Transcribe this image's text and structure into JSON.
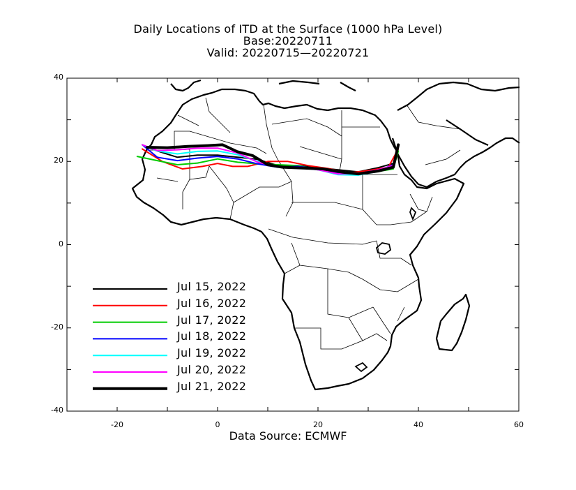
{
  "header": {
    "title": "Daily Locations of ITD at the Surface (1000 hPa Level)",
    "base": "Base:20220711",
    "valid": "Valid: 20220715—20220721"
  },
  "axes": {
    "x_ticks": [
      -20,
      0,
      20,
      40,
      60
    ],
    "y_ticks": [
      40,
      20,
      0,
      -20,
      -40
    ],
    "xlim": [
      -30,
      60
    ],
    "ylim": [
      -40,
      40
    ]
  },
  "legend": [
    {
      "label": "Jul 15, 2022",
      "color": "#000000",
      "width": 2
    },
    {
      "label": "Jul 16, 2022",
      "color": "#ff0000",
      "width": 2
    },
    {
      "label": "Jul 17, 2022",
      "color": "#00cc00",
      "width": 2
    },
    {
      "label": "Jul 18, 2022",
      "color": "#0000ff",
      "width": 2
    },
    {
      "label": "Jul 19, 2022",
      "color": "#00ffff",
      "width": 2
    },
    {
      "label": "Jul 20, 2022",
      "color": "#ff00ff",
      "width": 2
    },
    {
      "label": "Jul 21, 2022",
      "color": "#000000",
      "width": 4
    }
  ],
  "chart_data": {
    "type": "line",
    "xlabel": "",
    "ylabel": "",
    "series": [
      {
        "name": "Jul 15, 2022",
        "color": "#000000",
        "points": [
          [
            -15,
            24
          ],
          [
            -12,
            22.5
          ],
          [
            -8,
            21
          ],
          [
            -4,
            21.5
          ],
          [
            0,
            21.5
          ],
          [
            4,
            21
          ],
          [
            8,
            20.5
          ],
          [
            12,
            19
          ],
          [
            16,
            19
          ],
          [
            20,
            18.5
          ],
          [
            24,
            18
          ],
          [
            28,
            17.5
          ],
          [
            32,
            18.5
          ],
          [
            35,
            19.5
          ],
          [
            36,
            24
          ]
        ]
      },
      {
        "name": "Jul 16, 2022",
        "color": "#ff0000",
        "points": [
          [
            -15,
            23
          ],
          [
            -11,
            20
          ],
          [
            -7,
            18.2
          ],
          [
            -3,
            18.8
          ],
          [
            0,
            19.5
          ],
          [
            3,
            18.8
          ],
          [
            6,
            18.8
          ],
          [
            10,
            20
          ],
          [
            14,
            20
          ],
          [
            18,
            19
          ],
          [
            22,
            18.3
          ],
          [
            26,
            17.2
          ],
          [
            30,
            17.8
          ],
          [
            34,
            18.6
          ],
          [
            36,
            23
          ]
        ]
      },
      {
        "name": "Jul 17, 2022",
        "color": "#00cc00",
        "points": [
          [
            -16,
            21.2
          ],
          [
            -12,
            20.2
          ],
          [
            -8,
            19.2
          ],
          [
            -4,
            19.6
          ],
          [
            0,
            20.6
          ],
          [
            4,
            19.8
          ],
          [
            8,
            19.4
          ],
          [
            12,
            19.2
          ],
          [
            16,
            19
          ],
          [
            20,
            18
          ],
          [
            24,
            17.2
          ],
          [
            28,
            17
          ],
          [
            32,
            17.6
          ],
          [
            35,
            18.2
          ],
          [
            36,
            22.5
          ]
        ]
      },
      {
        "name": "Jul 18, 2022",
        "color": "#0000ff",
        "points": [
          [
            -15,
            24
          ],
          [
            -12,
            21
          ],
          [
            -8,
            20.2
          ],
          [
            -4,
            20.8
          ],
          [
            0,
            21.2
          ],
          [
            4,
            20.6
          ],
          [
            8,
            19.4
          ],
          [
            12,
            18.6
          ],
          [
            16,
            18.8
          ],
          [
            20,
            18.2
          ],
          [
            24,
            17.3
          ],
          [
            28,
            16.8
          ],
          [
            32,
            17.8
          ],
          [
            35,
            19.2
          ],
          [
            36,
            24
          ]
        ]
      },
      {
        "name": "Jul 19, 2022",
        "color": "#00ffff",
        "points": [
          [
            -15,
            24
          ],
          [
            -12,
            22.5
          ],
          [
            -8,
            21.8
          ],
          [
            -4,
            22.4
          ],
          [
            0,
            22.5
          ],
          [
            4,
            21.6
          ],
          [
            8,
            20
          ],
          [
            12,
            18.8
          ],
          [
            16,
            18.5
          ],
          [
            20,
            18
          ],
          [
            24,
            16.8
          ],
          [
            28,
            16.7
          ],
          [
            32,
            17.6
          ],
          [
            35,
            18.6
          ],
          [
            36,
            23.5
          ]
        ]
      },
      {
        "name": "Jul 20, 2022",
        "color": "#ff00ff",
        "points": [
          [
            -15,
            24
          ],
          [
            -12,
            22.6
          ],
          [
            -8,
            22.8
          ],
          [
            -4,
            23.2
          ],
          [
            0,
            23.2
          ],
          [
            4,
            22
          ],
          [
            8,
            19.8
          ],
          [
            12,
            18.7
          ],
          [
            16,
            18.6
          ],
          [
            20,
            18
          ],
          [
            24,
            17
          ],
          [
            28,
            17.1
          ],
          [
            32,
            18
          ],
          [
            35,
            19
          ],
          [
            36,
            24
          ]
        ]
      },
      {
        "name": "Jul 21, 2022",
        "color": "#000000",
        "points": [
          [
            -14,
            23.4
          ],
          [
            -10,
            23.3
          ],
          [
            -6,
            23.6
          ],
          [
            -2,
            23.8
          ],
          [
            1,
            24
          ],
          [
            4,
            22.3
          ],
          [
            7,
            21.4
          ],
          [
            10,
            19.2
          ],
          [
            13,
            18.6
          ],
          [
            17,
            18.4
          ],
          [
            21,
            18.2
          ],
          [
            25,
            17.4
          ],
          [
            28,
            17
          ],
          [
            32,
            17.7
          ],
          [
            35,
            18.6
          ],
          [
            36,
            24
          ]
        ]
      }
    ]
  },
  "footer": {
    "source": "Data Source: ECMWF"
  }
}
